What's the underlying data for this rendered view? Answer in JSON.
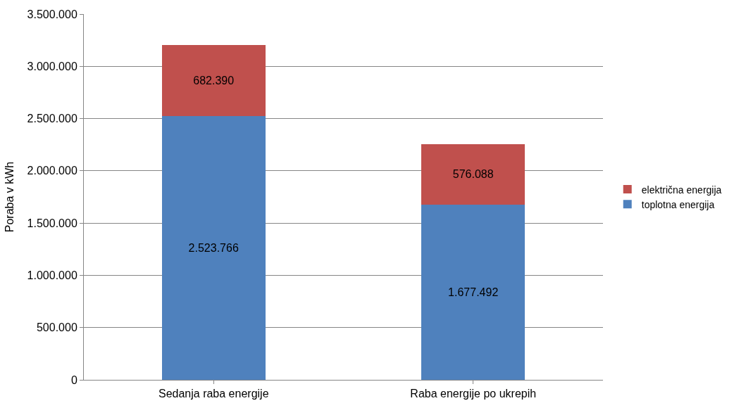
{
  "chart_data": {
    "type": "bar",
    "stacked": true,
    "ylabel": "Poraba v kWh",
    "categories": [
      "Sedanja raba energije",
      "Raba energije po ukrepih"
    ],
    "series": [
      {
        "name": "toplotna energija",
        "color": "#4f81bd",
        "values": [
          2523766,
          1677492
        ],
        "value_labels": [
          "2.523.766",
          "1.677.492"
        ]
      },
      {
        "name": "električna energija",
        "color": "#c0504d",
        "values": [
          682390,
          576088
        ],
        "value_labels": [
          "682.390",
          "576.088"
        ]
      }
    ],
    "ylim": [
      0,
      3500000
    ],
    "yticks": [
      {
        "value": 0,
        "label": "0"
      },
      {
        "value": 500000,
        "label": "500.000"
      },
      {
        "value": 1000000,
        "label": "1.000.000"
      },
      {
        "value": 1500000,
        "label": "1.500.000"
      },
      {
        "value": 2000000,
        "label": "2.000.000"
      },
      {
        "value": 2500000,
        "label": "2.500.000"
      },
      {
        "value": 3000000,
        "label": "3.000.000"
      },
      {
        "value": 3500000,
        "label": "3.500.000"
      }
    ],
    "grid": "y",
    "legend": "right"
  }
}
